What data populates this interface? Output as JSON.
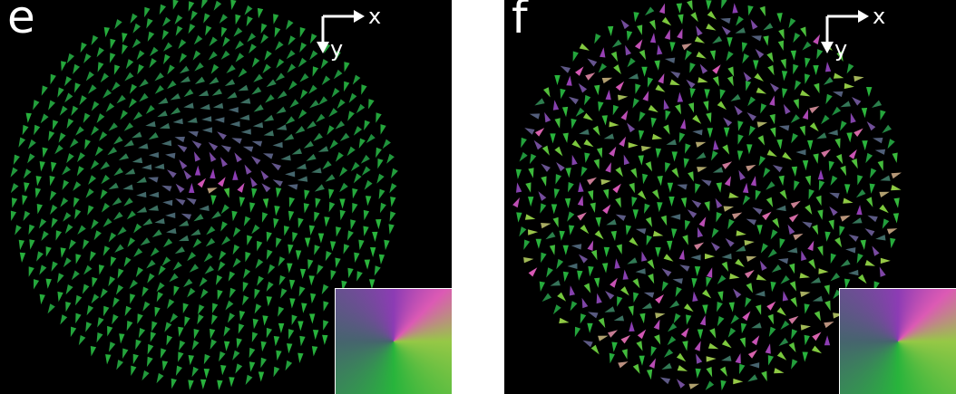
{
  "panels": [
    {
      "id": "e",
      "label": "e",
      "axis_x_label": "x",
      "axis_y_label": "y",
      "pattern": "vortex",
      "seed": 11
    },
    {
      "id": "f",
      "label": "f",
      "axis_x_label": "x",
      "axis_y_label": "y",
      "pattern": "random",
      "seed": 29
    }
  ],
  "colors": {
    "background": "#000000",
    "axis": "#ffffff"
  }
}
